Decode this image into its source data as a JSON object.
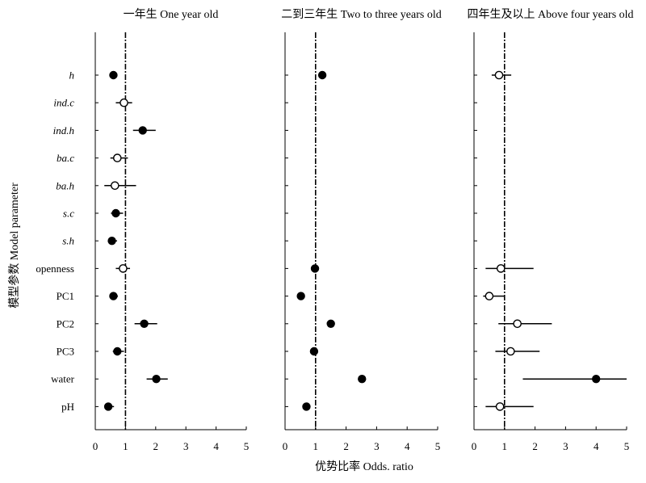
{
  "chart_data": {
    "type": "scatter",
    "ylabel": "模型参数 Model parameter",
    "xlabel": "优势比率 Odds. ratio",
    "xlim": [
      0,
      5
    ],
    "xticks": [
      "0",
      "1",
      "2",
      "3",
      "4",
      "5"
    ],
    "reference_x": 1,
    "parameters": [
      {
        "label": "h",
        "italic": true
      },
      {
        "label": "ind.c",
        "italic": true
      },
      {
        "label": "ind.h",
        "italic": true
      },
      {
        "label": "ba.c",
        "italic": true
      },
      {
        "label": "ba.h",
        "italic": true
      },
      {
        "label": "s.c",
        "italic": true
      },
      {
        "label": "s.h",
        "italic": true
      },
      {
        "label": "openness",
        "italic": false
      },
      {
        "label": "PC1",
        "italic": false
      },
      {
        "label": "PC2",
        "italic": false
      },
      {
        "label": "PC3",
        "italic": false
      },
      {
        "label": "water",
        "italic": false
      },
      {
        "label": "pH",
        "italic": false
      }
    ],
    "panels": [
      {
        "title": "一年生  One year old",
        "points": [
          {
            "param": "h",
            "value": 0.6,
            "ci": [
              0.5,
              0.72
            ],
            "filled": true
          },
          {
            "param": "ind.c",
            "value": 0.95,
            "ci": [
              0.68,
              1.22
            ],
            "filled": false
          },
          {
            "param": "ind.h",
            "value": 1.57,
            "ci": [
              1.25,
              2.0
            ],
            "filled": true
          },
          {
            "param": "ba.c",
            "value": 0.73,
            "ci": [
              0.5,
              1.08
            ],
            "filled": false
          },
          {
            "param": "ba.h",
            "value": 0.65,
            "ci": [
              0.3,
              1.35
            ],
            "filled": false
          },
          {
            "param": "s.c",
            "value": 0.68,
            "ci": [
              0.52,
              0.92
            ],
            "filled": true
          },
          {
            "param": "s.h",
            "value": 0.55,
            "ci": [
              0.45,
              0.72
            ],
            "filled": true
          },
          {
            "param": "openness",
            "value": 0.92,
            "ci": [
              0.68,
              1.15
            ],
            "filled": false
          },
          {
            "param": "PC1",
            "value": 0.6,
            "ci": [
              0.48,
              0.75
            ],
            "filled": true
          },
          {
            "param": "PC2",
            "value": 1.62,
            "ci": [
              1.3,
              2.05
            ],
            "filled": true
          },
          {
            "param": "PC3",
            "value": 0.73,
            "ci": [
              0.58,
              0.95
            ],
            "filled": true
          },
          {
            "param": "water",
            "value": 2.02,
            "ci": [
              1.7,
              2.4
            ],
            "filled": true
          },
          {
            "param": "pH",
            "value": 0.43,
            "ci": [
              0.33,
              0.62
            ],
            "filled": true
          }
        ]
      },
      {
        "title": "二到三年生  Two to three years old",
        "points": [
          {
            "param": "h",
            "value": 1.22,
            "ci": [
              1.22,
              1.22
            ],
            "filled": true
          },
          {
            "param": "openness",
            "value": 0.98,
            "ci": [
              0.98,
              0.98
            ],
            "filled": true
          },
          {
            "param": "PC1",
            "value": 0.52,
            "ci": [
              0.52,
              0.52
            ],
            "filled": true
          },
          {
            "param": "PC2",
            "value": 1.5,
            "ci": [
              1.5,
              1.5
            ],
            "filled": true
          },
          {
            "param": "PC3",
            "value": 0.95,
            "ci": [
              0.95,
              0.95
            ],
            "filled": true
          },
          {
            "param": "water",
            "value": 2.52,
            "ci": [
              2.52,
              2.52
            ],
            "filled": true
          },
          {
            "param": "pH",
            "value": 0.7,
            "ci": [
              0.7,
              0.7
            ],
            "filled": true
          }
        ]
      },
      {
        "title": "四年生及以上  Above four years old",
        "points": [
          {
            "param": "h",
            "value": 0.82,
            "ci": [
              0.58,
              1.22
            ],
            "filled": false
          },
          {
            "param": "openness",
            "value": 0.88,
            "ci": [
              0.38,
              1.95
            ],
            "filled": false
          },
          {
            "param": "PC1",
            "value": 0.5,
            "ci": [
              0.3,
              0.98
            ],
            "filled": false
          },
          {
            "param": "PC2",
            "value": 1.42,
            "ci": [
              0.8,
              2.55
            ],
            "filled": false
          },
          {
            "param": "PC3",
            "value": 1.2,
            "ci": [
              0.7,
              2.15
            ],
            "filled": false
          },
          {
            "param": "water",
            "value": 4.0,
            "ci": [
              1.6,
              5.0
            ],
            "filled": true
          },
          {
            "param": "pH",
            "value": 0.85,
            "ci": [
              0.38,
              1.95
            ],
            "filled": false
          }
        ]
      }
    ]
  }
}
